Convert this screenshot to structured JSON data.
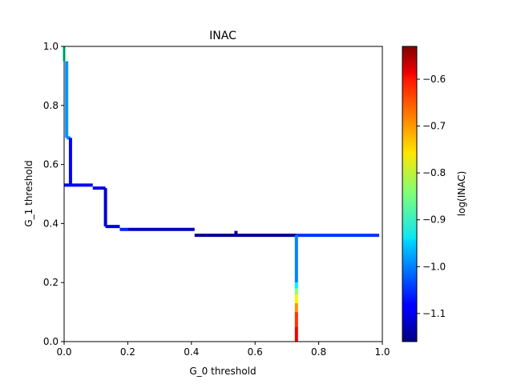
{
  "chart_data": {
    "type": "line",
    "title": "INAC",
    "xlabel": "G_0 threshold",
    "ylabel": "G_1 threshold",
    "xlim": [
      0,
      1
    ],
    "ylim": [
      0,
      1
    ],
    "xticks": [
      "0.0",
      "0.2",
      "0.4",
      "0.6",
      "0.8",
      "1.0"
    ],
    "yticks": [
      "0.0",
      "0.2",
      "0.4",
      "0.6",
      "0.8",
      "1.0"
    ],
    "grid": false,
    "colormap": "jet",
    "colorbar": {
      "label": "log(INAC)",
      "range": [
        -1.16,
        -0.53
      ],
      "ticks": [
        "−0.6",
        "−0.7",
        "−0.8",
        "−0.9",
        "−1.0",
        "−1.1"
      ]
    },
    "segments": [
      {
        "x": [
          0.0,
          0.0
        ],
        "y": [
          1.0,
          0.95
        ],
        "value": -0.88
      },
      {
        "x": [
          0.008,
          0.008
        ],
        "y": [
          0.95,
          0.69
        ],
        "value": -0.99
      },
      {
        "x": [
          0.008,
          0.02
        ],
        "y": [
          0.69,
          0.69
        ],
        "value": -1.0
      },
      {
        "x": [
          0.02,
          0.02
        ],
        "y": [
          0.69,
          0.53
        ],
        "value": -1.08
      },
      {
        "x": [
          0.0,
          0.09
        ],
        "y": [
          0.53,
          0.53
        ],
        "value": -1.08
      },
      {
        "x": [
          0.09,
          0.13
        ],
        "y": [
          0.52,
          0.52
        ],
        "value": -1.1
      },
      {
        "x": [
          0.13,
          0.13
        ],
        "y": [
          0.52,
          0.39
        ],
        "value": -1.11
      },
      {
        "x": [
          0.13,
          0.175
        ],
        "y": [
          0.39,
          0.39
        ],
        "value": -1.1
      },
      {
        "x": [
          0.175,
          0.2
        ],
        "y": [
          0.38,
          0.38
        ],
        "value": -1.06
      },
      {
        "x": [
          0.2,
          0.41
        ],
        "y": [
          0.38,
          0.38
        ],
        "value": -1.12
      },
      {
        "x": [
          0.41,
          0.73
        ],
        "y": [
          0.36,
          0.36
        ],
        "value": -1.15
      },
      {
        "x": [
          0.54,
          0.54
        ],
        "y": [
          0.36,
          0.375
        ],
        "value": -1.15
      },
      {
        "x": [
          0.73,
          0.99
        ],
        "y": [
          0.36,
          0.36
        ],
        "value": -1.05
      },
      {
        "x": [
          0.73,
          0.73
        ],
        "y": [
          0.36,
          0.2
        ],
        "value": -1.0
      },
      {
        "x": [
          0.73,
          0.73
        ],
        "y": [
          0.2,
          0.18
        ],
        "value": -0.93
      },
      {
        "x": [
          0.73,
          0.73
        ],
        "y": [
          0.18,
          0.16
        ],
        "value": -0.84
      },
      {
        "x": [
          0.73,
          0.73
        ],
        "y": [
          0.16,
          0.13
        ],
        "value": -0.76
      },
      {
        "x": [
          0.73,
          0.73
        ],
        "y": [
          0.13,
          0.1
        ],
        "value": -0.7
      },
      {
        "x": [
          0.73,
          0.73
        ],
        "y": [
          0.1,
          0.05
        ],
        "value": -0.64
      },
      {
        "x": [
          0.73,
          0.73
        ],
        "y": [
          0.05,
          0.0
        ],
        "value": -0.6
      }
    ]
  }
}
